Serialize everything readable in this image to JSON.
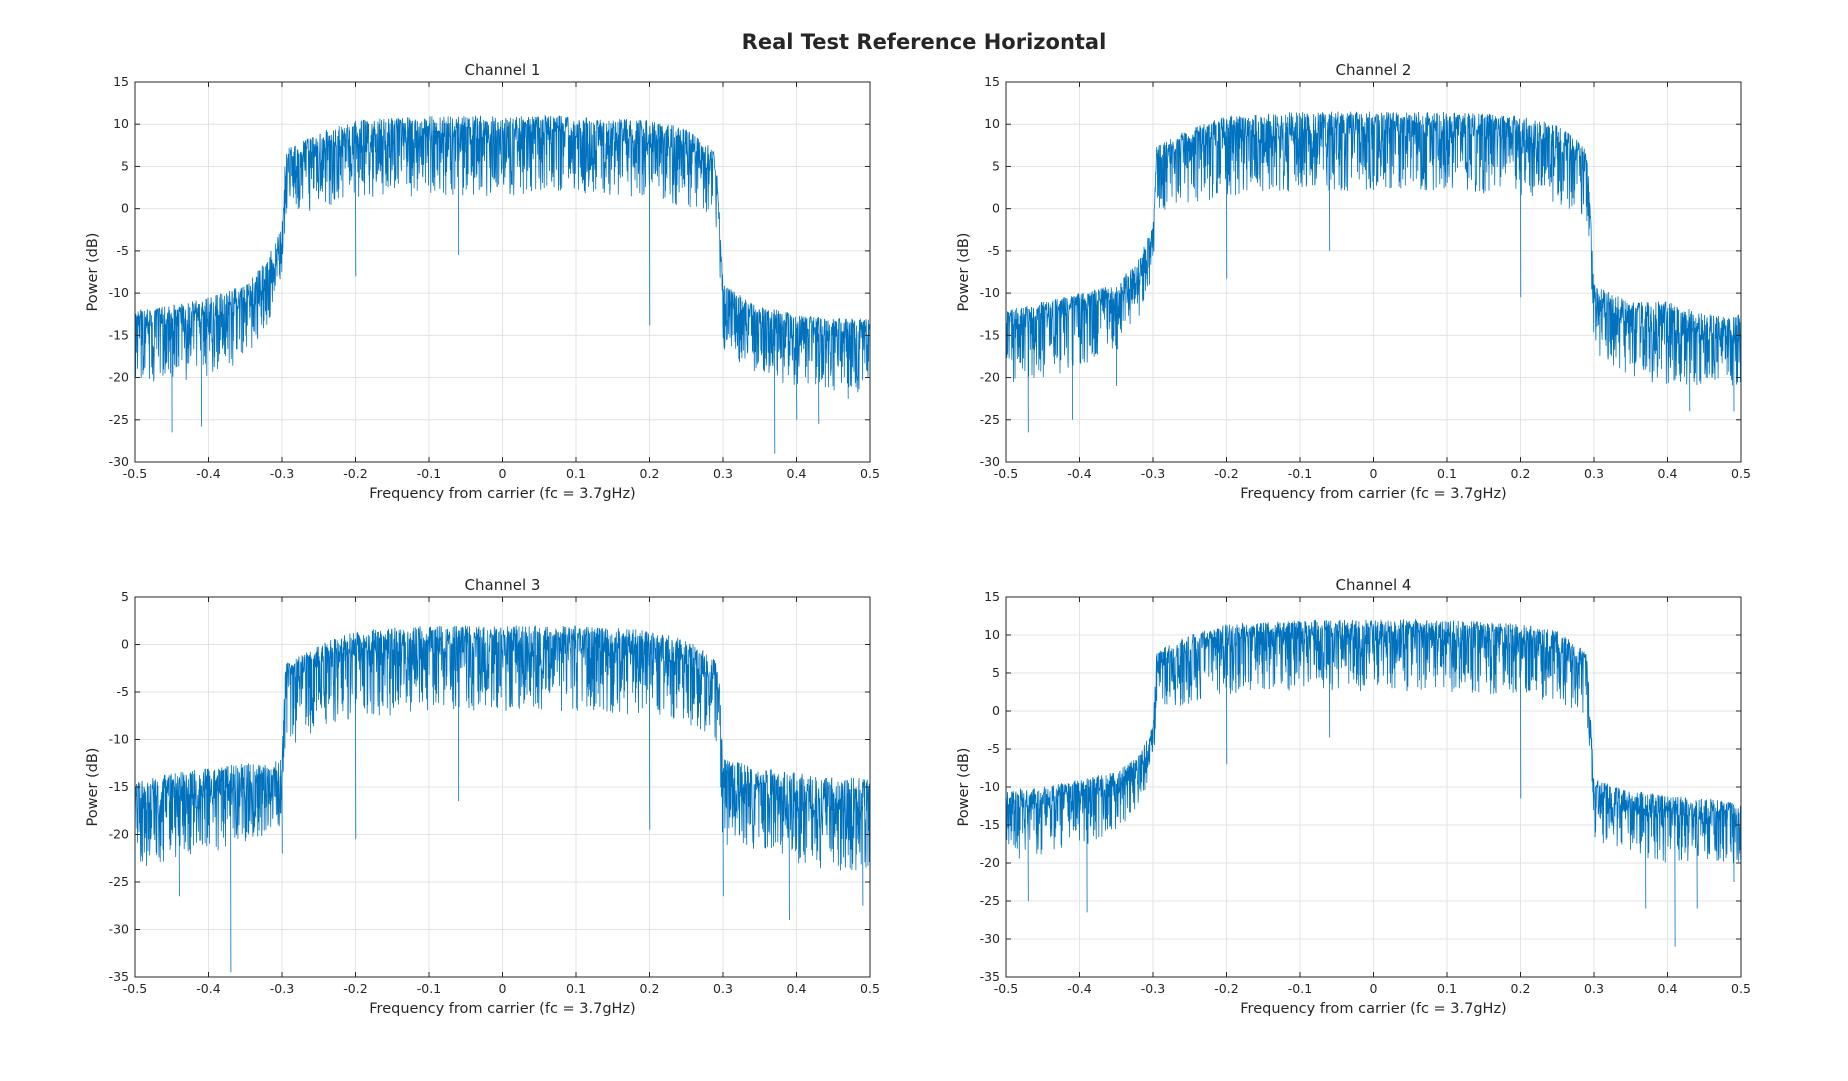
{
  "figure": {
    "title": "Real Test Reference Horizontal",
    "line_color": "#0072BD",
    "grid_color": "#e3e3e3",
    "axis_color": "#262626"
  },
  "chart_data": [
    {
      "type": "line",
      "title": "Channel 1",
      "xlabel": "Frequency from carrier (fc = 3.7gHz)",
      "ylabel": "Power (dB)",
      "xlim": [
        -0.5,
        0.5
      ],
      "ylim": [
        -30,
        15
      ],
      "xticks": [
        -0.5,
        -0.4,
        -0.3,
        -0.2,
        -0.1,
        0,
        0.1,
        0.2,
        0.3,
        0.4,
        0.5
      ],
      "xtick_labels": [
        "-0.5",
        "-0.4",
        "-0.3",
        "-0.2",
        "-0.1",
        "0",
        "0.1",
        "0.2",
        "0.3",
        "0.4",
        "0.5"
      ],
      "yticks": [
        -30,
        -25,
        -20,
        -15,
        -10,
        -5,
        0,
        5,
        10,
        15
      ],
      "ytick_labels": [
        "-30",
        "-25",
        "-20",
        "-15",
        "-10",
        "-5",
        "0",
        "5",
        "10",
        "15"
      ],
      "grid": true,
      "envelope": {
        "x": [
          -0.5,
          -0.45,
          -0.4,
          -0.35,
          -0.32,
          -0.3,
          -0.295,
          -0.25,
          -0.2,
          -0.1,
          0,
          0.1,
          0.2,
          0.25,
          0.28,
          0.29,
          0.295,
          0.3,
          0.35,
          0.4,
          0.45,
          0.5
        ],
        "y_top": [
          -12,
          -11.5,
          -10.5,
          -9,
          -6,
          -2,
          7,
          9,
          10.5,
          11,
          11,
          11,
          10.5,
          9.5,
          7.5,
          6.5,
          0,
          -9,
          -11.5,
          -12.5,
          -13,
          -13
        ],
        "y_mid": [
          -14,
          -13.5,
          -13,
          -11.5,
          -9,
          -4,
          5,
          7,
          8,
          8.5,
          8.5,
          8.5,
          8,
          7,
          5.5,
          5,
          -1,
          -11,
          -13.5,
          -14.5,
          -15,
          -15
        ],
        "y_floor": [
          -20,
          -21,
          -20,
          -18,
          -14,
          -8,
          -1,
          0,
          1,
          1.5,
          1.5,
          1.5,
          1,
          0,
          -1,
          -2,
          -6,
          -17,
          -20,
          -21,
          -22,
          -22
        ]
      },
      "dips": [
        [
          -0.45,
          -26.5
        ],
        [
          -0.41,
          -25.8
        ],
        [
          -0.2,
          -8
        ],
        [
          -0.06,
          -5.5
        ],
        [
          0.2,
          -13.8
        ],
        [
          0.37,
          -29
        ],
        [
          0.4,
          -25
        ],
        [
          0.43,
          -25.5
        ],
        [
          0.47,
          -22.5
        ]
      ]
    },
    {
      "type": "line",
      "title": "Channel 2",
      "xlabel": "Frequency from carrier (fc = 3.7gHz)",
      "ylabel": "Power (dB)",
      "xlim": [
        -0.5,
        0.5
      ],
      "ylim": [
        -30,
        15
      ],
      "xticks": [
        -0.5,
        -0.4,
        -0.3,
        -0.2,
        -0.1,
        0,
        0.1,
        0.2,
        0.3,
        0.4,
        0.5
      ],
      "xtick_labels": [
        "-0.5",
        "-0.4",
        "-0.3",
        "-0.2",
        "-0.1",
        "0",
        "0.1",
        "0.2",
        "0.3",
        "0.4",
        "0.5"
      ],
      "yticks": [
        -30,
        -25,
        -20,
        -15,
        -10,
        -5,
        0,
        5,
        10,
        15
      ],
      "ytick_labels": [
        "-30",
        "-25",
        "-20",
        "-15",
        "-10",
        "-5",
        "0",
        "5",
        "10",
        "15"
      ],
      "grid": true,
      "envelope": {
        "x": [
          -0.5,
          -0.45,
          -0.4,
          -0.35,
          -0.32,
          -0.3,
          -0.295,
          -0.25,
          -0.2,
          -0.1,
          0,
          0.1,
          0.2,
          0.25,
          0.28,
          0.29,
          0.295,
          0.3,
          0.35,
          0.4,
          0.45,
          0.5
        ],
        "y_top": [
          -12,
          -11,
          -10,
          -9,
          -6,
          -2,
          7.5,
          9.5,
          11,
          11.5,
          11.5,
          11.5,
          11,
          10,
          8,
          7,
          0,
          -9,
          -11,
          -11,
          -12.5,
          -12.5
        ],
        "y_mid": [
          -14,
          -13,
          -12,
          -11,
          -8.5,
          -4,
          5.5,
          7.5,
          8.5,
          9,
          9,
          9,
          8.5,
          7.5,
          6,
          5.5,
          -1,
          -11,
          -13.5,
          -14,
          -15,
          -15
        ],
        "y_floor": [
          -21,
          -20,
          -19,
          -17,
          -13,
          -8,
          -1,
          0.5,
          1.5,
          2,
          2,
          2,
          1.5,
          0.5,
          -0.5,
          -1.5,
          -6,
          -17,
          -20,
          -21,
          -21,
          -21
        ]
      },
      "dips": [
        [
          -0.47,
          -26.5
        ],
        [
          -0.41,
          -25
        ],
        [
          -0.35,
          -21
        ],
        [
          -0.2,
          -8.3
        ],
        [
          -0.06,
          -5
        ],
        [
          0.2,
          -10.5
        ],
        [
          0.43,
          -24
        ],
        [
          0.49,
          -24
        ]
      ]
    },
    {
      "type": "line",
      "title": "Channel 3",
      "xlabel": "Frequency from carrier (fc = 3.7gHz)",
      "ylabel": "Power (dB)",
      "xlim": [
        -0.5,
        0.5
      ],
      "ylim": [
        -35,
        5
      ],
      "xticks": [
        -0.5,
        -0.4,
        -0.3,
        -0.2,
        -0.1,
        0,
        0.1,
        0.2,
        0.3,
        0.4,
        0.5
      ],
      "xtick_labels": [
        "-0.5",
        "-0.4",
        "-0.3",
        "-0.2",
        "-0.1",
        "0",
        "0.1",
        "0.2",
        "0.3",
        "0.4",
        "0.5"
      ],
      "yticks": [
        -35,
        -30,
        -25,
        -20,
        -15,
        -10,
        -5,
        0,
        5
      ],
      "ytick_labels": [
        "-35",
        "-30",
        "-25",
        "-20",
        "-15",
        "-10",
        "-5",
        "0",
        "5"
      ],
      "grid": true,
      "envelope": {
        "x": [
          -0.5,
          -0.45,
          -0.4,
          -0.35,
          -0.32,
          -0.3,
          -0.295,
          -0.25,
          -0.2,
          -0.1,
          0,
          0.1,
          0.2,
          0.25,
          0.28,
          0.29,
          0.295,
          0.3,
          0.35,
          0.4,
          0.45,
          0.5
        ],
        "y_top": [
          -14.5,
          -13.5,
          -13,
          -12.5,
          -12.5,
          -12,
          -2,
          0,
          1.5,
          2,
          2,
          2,
          1.5,
          0.5,
          -1,
          -1.5,
          -4,
          -12,
          -13,
          -13.5,
          -14,
          -14
        ],
        "y_mid": [
          -17,
          -16,
          -15.5,
          -15,
          -15,
          -14,
          -4,
          -2,
          -1,
          -0.5,
          -0.5,
          -0.5,
          -1,
          -2,
          -3,
          -3.5,
          -7,
          -15,
          -16,
          -16.5,
          -17,
          -17
        ],
        "y_floor": [
          -24,
          -23,
          -22,
          -21,
          -20,
          -19,
          -11,
          -9,
          -8,
          -7,
          -7,
          -7,
          -7.5,
          -8.5,
          -9.5,
          -10,
          -14,
          -21,
          -22,
          -23,
          -24,
          -24
        ]
      },
      "dips": [
        [
          -0.37,
          -34.5
        ],
        [
          -0.44,
          -26.5
        ],
        [
          -0.3,
          -22
        ],
        [
          -0.2,
          -20.5
        ],
        [
          -0.06,
          -16.5
        ],
        [
          0.2,
          -19.5
        ],
        [
          0.3,
          -26.5
        ],
        [
          0.39,
          -29
        ],
        [
          0.49,
          -27.5
        ]
      ]
    },
    {
      "type": "line",
      "title": "Channel 4",
      "xlabel": "Frequency from carrier (fc = 3.7gHz)",
      "ylabel": "Power (dB)",
      "xlim": [
        -0.5,
        0.5
      ],
      "ylim": [
        -35,
        15
      ],
      "xticks": [
        -0.5,
        -0.4,
        -0.3,
        -0.2,
        -0.1,
        0,
        0.1,
        0.2,
        0.3,
        0.4,
        0.5
      ],
      "xtick_labels": [
        "-0.5",
        "-0.4",
        "-0.3",
        "-0.2",
        "-0.1",
        "0",
        "0.1",
        "0.2",
        "0.3",
        "0.4",
        "0.5"
      ],
      "yticks": [
        -35,
        -30,
        -25,
        -20,
        -15,
        -10,
        -5,
        0,
        5,
        10,
        15
      ],
      "ytick_labels": [
        "-35",
        "-30",
        "-25",
        "-20",
        "-15",
        "-10",
        "-5",
        "0",
        "5",
        "10",
        "15"
      ],
      "grid": true,
      "envelope": {
        "x": [
          -0.5,
          -0.45,
          -0.4,
          -0.35,
          -0.32,
          -0.3,
          -0.295,
          -0.25,
          -0.2,
          -0.1,
          0,
          0.1,
          0.2,
          0.25,
          0.28,
          0.29,
          0.295,
          0.3,
          0.35,
          0.4,
          0.45,
          0.5
        ],
        "y_top": [
          -10.5,
          -10,
          -9,
          -8,
          -6,
          -2,
          8,
          10,
          11.5,
          12,
          12,
          12,
          11.5,
          10.5,
          8.5,
          7.5,
          0,
          -9,
          -10.5,
          -11,
          -11.5,
          -12
        ],
        "y_mid": [
          -13,
          -12,
          -11,
          -10,
          -8,
          -4,
          6,
          8,
          9,
          9.5,
          9.5,
          9.5,
          9,
          8,
          6.5,
          6,
          -1,
          -11,
          -13,
          -13.5,
          -14,
          -14
        ],
        "y_floor": [
          -20,
          -19,
          -18,
          -16,
          -13,
          -8,
          -1,
          1,
          2,
          2.5,
          2.5,
          2.5,
          2,
          1,
          0,
          -1,
          -6,
          -17,
          -19,
          -20,
          -20,
          -20
        ]
      },
      "dips": [
        [
          -0.47,
          -25
        ],
        [
          -0.39,
          -26.5
        ],
        [
          -0.2,
          -7
        ],
        [
          -0.06,
          -3.5
        ],
        [
          0.2,
          -11.5
        ],
        [
          0.37,
          -26
        ],
        [
          0.41,
          -31
        ],
        [
          0.44,
          -26
        ],
        [
          0.49,
          -22.5
        ]
      ]
    }
  ]
}
